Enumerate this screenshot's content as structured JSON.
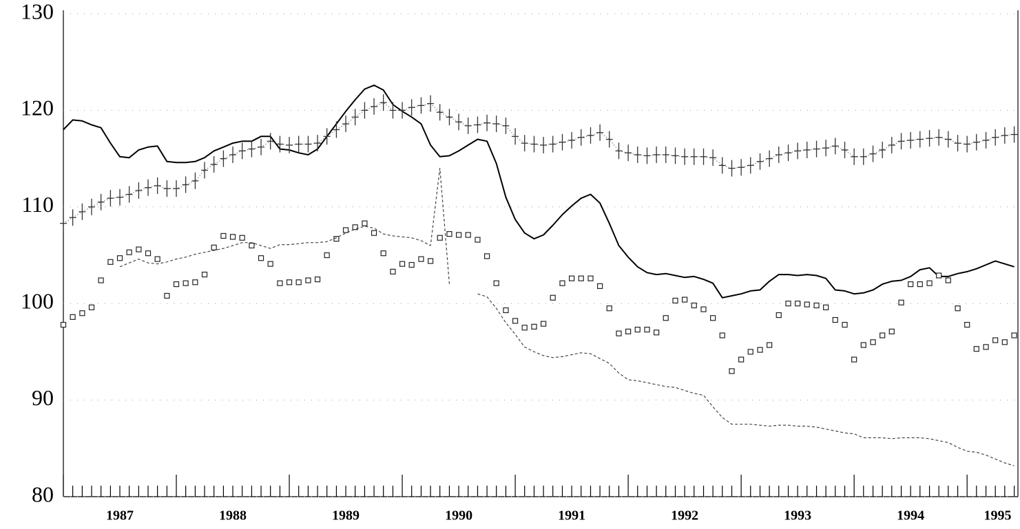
{
  "chart_data": {
    "type": "line",
    "x": [
      1987,
      1987.083,
      1987.167,
      1987.25,
      1987.333,
      1987.417,
      1987.5,
      1987.583,
      1987.667,
      1987.75,
      1987.833,
      1987.917,
      1988,
      1988.083,
      1988.167,
      1988.25,
      1988.333,
      1988.417,
      1988.5,
      1988.583,
      1988.667,
      1988.75,
      1988.833,
      1988.917,
      1989,
      1989.083,
      1989.167,
      1989.25,
      1989.333,
      1989.417,
      1989.5,
      1989.583,
      1989.667,
      1989.75,
      1989.833,
      1989.917,
      1990,
      1990.083,
      1990.167,
      1990.25,
      1990.333,
      1990.417,
      1990.5,
      1990.583,
      1990.667,
      1990.75,
      1990.833,
      1990.917,
      1991,
      1991.083,
      1991.167,
      1991.25,
      1991.333,
      1991.417,
      1991.5,
      1991.583,
      1991.667,
      1991.75,
      1991.833,
      1991.917,
      1992,
      1992.083,
      1992.167,
      1992.25,
      1992.333,
      1992.417,
      1992.5,
      1992.583,
      1992.667,
      1992.75,
      1992.833,
      1992.917,
      1993,
      1993.083,
      1993.167,
      1993.25,
      1993.333,
      1993.417,
      1993.5,
      1993.583,
      1993.667,
      1993.75,
      1993.833,
      1993.917,
      1994,
      1994.083,
      1994.167,
      1994.25,
      1994.333,
      1994.417,
      1994.5,
      1994.583,
      1994.667,
      1994.75,
      1994.833,
      1994.917,
      1995,
      1995.083,
      1995.167,
      1995.25,
      1995.333,
      1995.417
    ],
    "series": [
      {
        "color": "#000000",
        "line": "solid",
        "marker": "none",
        "values": [
          118,
          119,
          118.9,
          118.5,
          118.2,
          116.6,
          115.2,
          115.1,
          115.9,
          116.2,
          116.3,
          114.7,
          114.6,
          114.6,
          114.7,
          115.1,
          115.8,
          116.2,
          116.6,
          116.8,
          116.8,
          117.3,
          117.3,
          116,
          115.9,
          115.6,
          115.4,
          116,
          117.3,
          118.6,
          119.9,
          121.1,
          122.2,
          122.6,
          122.1,
          120.6,
          119.9,
          119.3,
          118.6,
          116.4,
          115.2,
          115.3,
          115.8,
          116.4,
          117,
          116.8,
          114.5,
          111,
          108.7,
          107.3,
          106.7,
          107.1,
          108.1,
          109.2,
          110.1,
          110.9,
          111.3,
          110.4,
          108.3,
          106,
          104.8,
          103.8,
          103.2,
          103,
          103.1,
          102.9,
          102.7,
          102.8,
          102.5,
          102.1,
          100.6,
          100.8,
          101,
          101.3,
          101.4,
          102.3,
          103,
          103,
          102.9,
          103,
          102.9,
          102.6,
          101.4,
          101.3,
          101,
          101.1,
          101.4,
          102,
          102.3,
          102.4,
          102.8,
          103.5,
          103.7,
          102.8,
          102.8,
          103.1,
          103.3,
          103.6,
          104,
          104.4,
          104.1,
          103.8
        ]
      },
      {
        "color": "#333333",
        "line": "dotted",
        "marker": "bar",
        "values": [
          108.3,
          108.9,
          109.5,
          110,
          110.5,
          110.9,
          111,
          111.3,
          111.7,
          112,
          112.2,
          111.9,
          111.9,
          112.3,
          112.7,
          113.8,
          114.4,
          115,
          115.4,
          115.8,
          116,
          116.2,
          116.8,
          116.5,
          116.4,
          116.5,
          116.5,
          116.6,
          117.3,
          118,
          118.6,
          119.3,
          120,
          120.4,
          120.8,
          120,
          120,
          120.3,
          120.5,
          120.7,
          119.8,
          119.3,
          118.8,
          118.4,
          118.5,
          118.7,
          118.6,
          118.4,
          117.3,
          116.6,
          116.5,
          116.4,
          116.5,
          116.7,
          116.9,
          117.2,
          117.4,
          117.7,
          117,
          115.8,
          115.6,
          115.4,
          115.3,
          115.4,
          115.4,
          115.3,
          115.2,
          115.2,
          115.2,
          115.1,
          114.3,
          114,
          114.1,
          114.3,
          114.7,
          115,
          115.4,
          115.6,
          115.8,
          115.9,
          116,
          116.1,
          116.3,
          115.9,
          115.2,
          115.2,
          115.5,
          115.9,
          116.4,
          116.8,
          116.9,
          117,
          117.1,
          117.2,
          117,
          116.6,
          116.5,
          116.7,
          116.9,
          117.2,
          117.4,
          117.5
        ]
      },
      {
        "color": "#222222",
        "line": "none",
        "marker": "square",
        "values": [
          97.8,
          98.6,
          99,
          99.6,
          102.4,
          104.3,
          104.7,
          105.3,
          105.6,
          105.2,
          104.6,
          100.8,
          102,
          102.1,
          102.2,
          103,
          105.8,
          107,
          106.9,
          106.8,
          106,
          104.7,
          104.1,
          102.1,
          102.2,
          102.2,
          102.4,
          102.5,
          105,
          106.7,
          107.6,
          107.9,
          108.3,
          107.3,
          105.2,
          103.3,
          104.1,
          104,
          104.6,
          104.4,
          106.8,
          107.2,
          107.1,
          107.1,
          106.6,
          104.9,
          102.1,
          99.3,
          98.2,
          97.5,
          97.6,
          97.9,
          100.6,
          102.1,
          102.6,
          102.6,
          102.6,
          101.8,
          99.5,
          96.9,
          97.1,
          97.3,
          97.3,
          97,
          98.5,
          100.3,
          100.4,
          99.8,
          99.4,
          98.5,
          96.7,
          93,
          94.2,
          95,
          95.2,
          95.7,
          98.8,
          100,
          100,
          99.9,
          99.8,
          99.6,
          98.3,
          97.8,
          94.2,
          95.7,
          96,
          96.7,
          97.1,
          100.1,
          102,
          102,
          102.1,
          102.9,
          102.4,
          99.5,
          97.8,
          95.3,
          95.5,
          96.2,
          96,
          96.7
        ]
      },
      {
        "color": "#444444",
        "line": "dashed",
        "marker": "none",
        "values": [
          null,
          null,
          null,
          null,
          null,
          null,
          103.8,
          104.2,
          104.6,
          104.2,
          104.1,
          104.3,
          104.6,
          104.8,
          105.1,
          105.3,
          105.5,
          105.7,
          106,
          106.3,
          106.3,
          106,
          105.7,
          106.1,
          106.1,
          106.2,
          106.3,
          106.3,
          106.4,
          106.8,
          107.3,
          107.7,
          108,
          107.8,
          107.2,
          107,
          106.9,
          106.8,
          106.5,
          106,
          114,
          102,
          null,
          null,
          101,
          100.7,
          99.5,
          98,
          96.8,
          95.5,
          95,
          94.6,
          94.4,
          94.5,
          94.7,
          94.9,
          94.8,
          94.3,
          93.8,
          92.8,
          92.1,
          92,
          91.8,
          91.6,
          91.4,
          91.3,
          91,
          90.7,
          90.5,
          89.3,
          88.2,
          87.5,
          87.5,
          87.5,
          87.4,
          87.3,
          87.4,
          87.4,
          87.3,
          87.3,
          87.2,
          87,
          86.8,
          86.6,
          86.5,
          86.1,
          86.1,
          86.1,
          86,
          86.1,
          86.1,
          86.1,
          86,
          85.8,
          85.6,
          85.1,
          84.7,
          84.6,
          84.3,
          83.9,
          83.5,
          83.2
        ]
      }
    ],
    "xlim": [
      1987,
      1995.45
    ],
    "xticks": [
      {
        "value": 1987.5,
        "label": "1987"
      },
      {
        "value": 1988.5,
        "label": "1988"
      },
      {
        "value": 1989.5,
        "label": "1989"
      },
      {
        "value": 1990.5,
        "label": "1990"
      },
      {
        "value": 1991.5,
        "label": "1991"
      },
      {
        "value": 1992.5,
        "label": "1992"
      },
      {
        "value": 1993.5,
        "label": "1993"
      },
      {
        "value": 1994.5,
        "label": "1994"
      },
      {
        "value": 1995.27,
        "label": "1995"
      }
    ],
    "ylim": [
      80,
      130
    ],
    "yticks": [
      80,
      90,
      100,
      110,
      120,
      130
    ],
    "grid": true
  }
}
